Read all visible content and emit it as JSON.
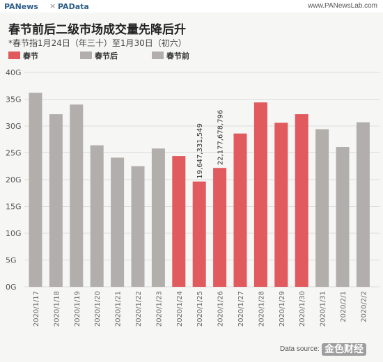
{
  "header": {
    "brand_left": "PANews",
    "brand_separator": "×",
    "brand_right": "PAData",
    "site_url": "www.PANewsLab.com"
  },
  "chart_data": {
    "type": "bar",
    "title": "春节前后二级市场成交量先降后升",
    "subtitle": "*春节指1月24日（年三十）至1月30日（初六）",
    "legend": [
      {
        "name": "春节",
        "color": "#e05a5e"
      },
      {
        "name": "春节后",
        "color": "#b2aeab"
      },
      {
        "name": "春节前",
        "color": "#b2aeab"
      }
    ],
    "categories": [
      "2020/1/17",
      "2020/1/18",
      "2020/1/19",
      "2020/1/20",
      "2020/1/21",
      "2020/1/22",
      "2020/1/23",
      "2020/1/24",
      "2020/1/25",
      "2020/1/26",
      "2020/1/27",
      "2020/1/28",
      "2020/1/29",
      "2020/1/30",
      "2020/1/31",
      "2020/2/1",
      "2020/2/2"
    ],
    "values": [
      36.2,
      32.2,
      34.0,
      26.4,
      24.1,
      22.5,
      25.8,
      24.4,
      19.647331549,
      22.177678796,
      28.6,
      34.4,
      30.6,
      32.2,
      29.4,
      26.1,
      30.7
    ],
    "groups": [
      "春节前",
      "春节前",
      "春节前",
      "春节前",
      "春节前",
      "春节前",
      "春节前",
      "春节",
      "春节",
      "春节",
      "春节",
      "春节",
      "春节",
      "春节",
      "春节后",
      "春节后",
      "春节后"
    ],
    "data_labels": [
      {
        "index": 8,
        "text": "19,647,331,549"
      },
      {
        "index": 9,
        "text": "22,177,678,796"
      }
    ],
    "y_ticks": [
      "0G",
      "5G",
      "10G",
      "15G",
      "20G",
      "25G",
      "30G",
      "35G",
      "40G"
    ],
    "ylim": [
      0,
      40
    ],
    "grid": true,
    "legend_position": "top-left"
  },
  "colors": {
    "spring_festival": "#e05a5e",
    "other": "#b2aeab",
    "grid": "#dcdcdc"
  },
  "footer": {
    "source": "Data source:",
    "watermark": "金色财经"
  }
}
